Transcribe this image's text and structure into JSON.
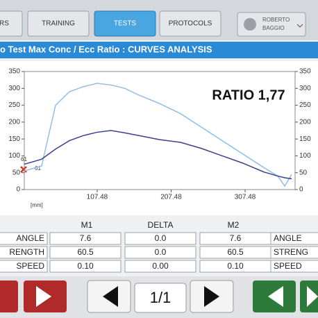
{
  "tabs": [
    "RS",
    "TRAINING",
    "TESTS",
    "PROTOCOLS"
  ],
  "user": {
    "first": "ROBERTO",
    "last": "BAGGIO"
  },
  "header": {
    "title": "o Test Max Conc / Ecc Ratio : CURVES ANALYSIS"
  },
  "chart_data": {
    "type": "line",
    "x": [
      9,
      32.4,
      51.2,
      69.9,
      88.7,
      107.5,
      126.3,
      145,
      163.8,
      192,
      220.2,
      248.3,
      276.5,
      304.7,
      332.8,
      351.6,
      361,
      370.4
    ],
    "series": [
      {
        "color": "#8fbde8",
        "values": [
          55,
          70,
          250,
          290,
          305,
          315,
          310,
          300,
          280,
          255,
          225,
          185,
          145,
          105,
          65,
          40,
          10,
          45
        ]
      },
      {
        "color": "#3b3f8c",
        "values": [
          75,
          90,
          120,
          145,
          160,
          170,
          175,
          168,
          160,
          148,
          140,
          122,
          100,
          78,
          52,
          40,
          35,
          32
        ]
      }
    ],
    "xlim": [
      9,
      375
    ],
    "xticks": [
      107.48,
      207.48,
      307.48
    ],
    "ylim": [
      0,
      350
    ],
    "yticks": [
      0,
      50,
      100,
      150,
      200,
      250,
      300,
      350
    ],
    "y2lim": [
      0,
      350
    ],
    "y2ticks": [
      0,
      50,
      100,
      150,
      200,
      250,
      300,
      350
    ],
    "x_unit": "[mm]",
    "annotation": "RATIO 1,77",
    "markers": [
      "61",
      "61"
    ]
  },
  "table": {
    "columns": [
      "M1",
      "DELTA",
      "M2"
    ],
    "rows": [
      [
        "ANGLE",
        "7.6",
        "0.0",
        "7.6",
        "ANGLE"
      ],
      [
        "RENGTH",
        "60.5",
        "0.0",
        "60.5",
        "STRENG"
      ],
      [
        "SPEED",
        "0.10",
        "0.00",
        "0.10",
        "SPEED"
      ]
    ]
  },
  "pager": "1/1"
}
